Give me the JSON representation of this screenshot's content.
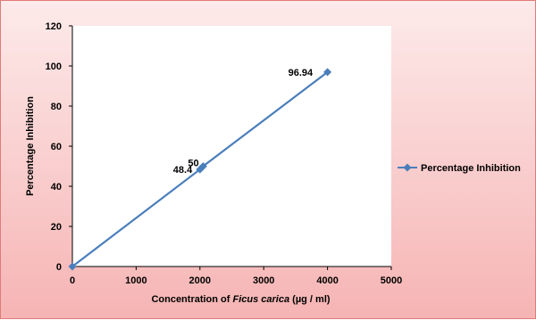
{
  "chart_data": {
    "type": "scatter",
    "x": [
      0,
      2000,
      2050,
      4000
    ],
    "series": [
      {
        "name": "Percentage Inhibition",
        "values": [
          0,
          48.4,
          50,
          96.94
        ],
        "color": "#4a7ebb"
      }
    ],
    "data_labels": [
      "",
      "48.4",
      "50",
      "96.94"
    ],
    "x_ticks": [
      "0",
      "1000",
      "2000",
      "3000",
      "4000",
      "5000"
    ],
    "y_ticks": [
      "0",
      "20",
      "40",
      "60",
      "80",
      "100",
      "120"
    ],
    "xlim": [
      0,
      5000
    ],
    "ylim": [
      0,
      120
    ],
    "xlabel_prefix": "Concentration of ",
    "xlabel_italic": "Ficus carica",
    "xlabel_suffix": " (µg / ml)",
    "ylabel": "Percentage Inhibition",
    "grid": false,
    "legend_position": "right",
    "line": true,
    "marker": "diamond"
  }
}
